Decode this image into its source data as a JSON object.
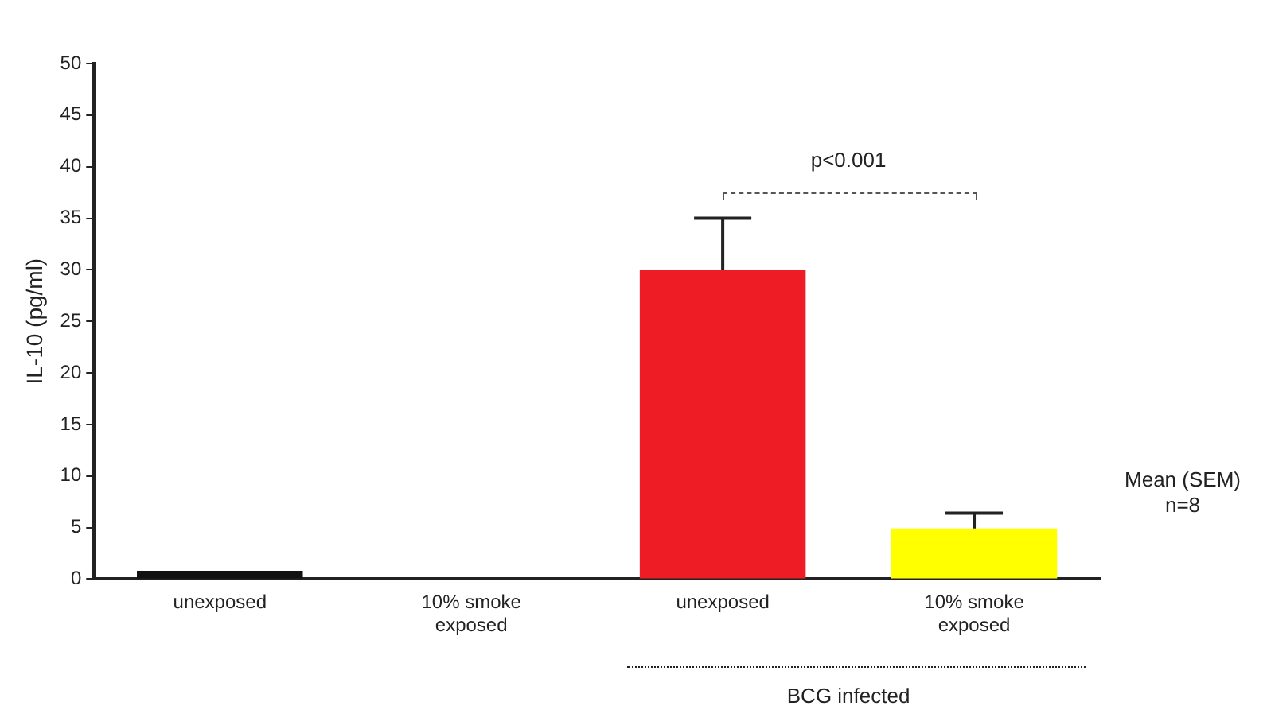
{
  "chart_data": {
    "type": "bar",
    "ylabel": "IL-10 (pg/ml)",
    "categories": [
      "unexposed",
      "10% smoke exposed",
      "unexposed",
      "10% smoke exposed"
    ],
    "values": [
      0.8,
      0,
      30,
      4.9
    ],
    "errors": [
      null,
      null,
      5,
      1.5
    ],
    "colors": [
      "#111111",
      "#ffffff",
      "#ee1c24",
      "#ffff00"
    ],
    "ylim": [
      0,
      50
    ],
    "yticks": [
      0,
      5,
      10,
      15,
      20,
      25,
      30,
      35,
      40,
      45,
      50
    ],
    "grid": false,
    "legend": false,
    "annotations": [
      "p<0.001",
      "Mean (SEM)",
      "n=8",
      "BCG infected"
    ]
  }
}
